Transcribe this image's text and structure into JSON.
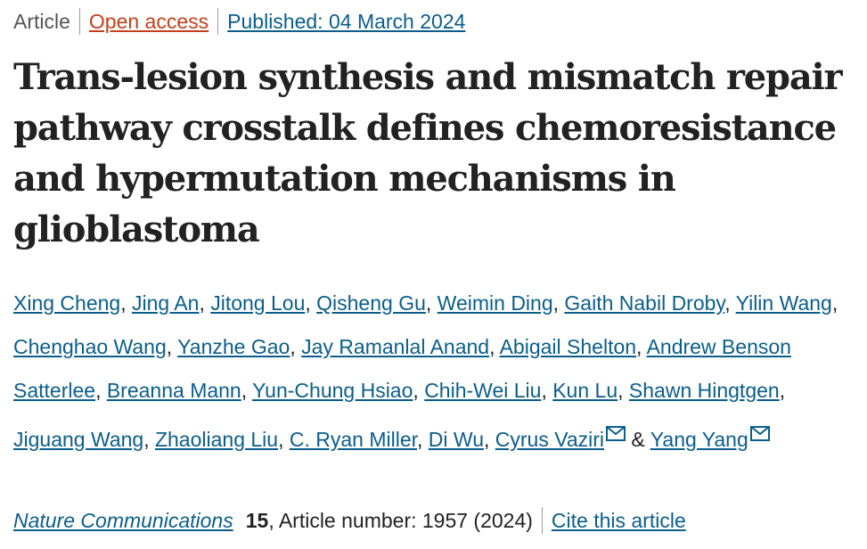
{
  "meta": {
    "article_type": "Article",
    "access": "Open access",
    "published_label": "Published: ",
    "published_date": "04 March 2024"
  },
  "title": "Trans-lesion synthesis and mismatch repair pathway crosstalk defines chemoresistance and hypermutation mechanisms in glioblastoma",
  "authors": [
    {
      "name": "Xing Cheng"
    },
    {
      "name": "Jing An"
    },
    {
      "name": "Jitong Lou"
    },
    {
      "name": "Qisheng Gu"
    },
    {
      "name": "Weimin Ding"
    },
    {
      "name": "Gaith Nabil Droby"
    },
    {
      "name": "Yilin Wang"
    },
    {
      "name": "Chenghao Wang"
    },
    {
      "name": "Yanzhe Gao"
    },
    {
      "name": "Jay Ramanlal Anand"
    },
    {
      "name": "Abigail Shelton"
    },
    {
      "name": "Andrew Benson Satterlee"
    },
    {
      "name": "Breanna Mann"
    },
    {
      "name": "Yun-Chung Hsiao"
    },
    {
      "name": "Chih-Wei Liu"
    },
    {
      "name": "Kun Lu"
    },
    {
      "name": "Shawn Hingtgen"
    },
    {
      "name": "Jiguang Wang"
    },
    {
      "name": "Zhaoliang Liu"
    },
    {
      "name": "C. Ryan Miller"
    },
    {
      "name": "Di Wu"
    },
    {
      "name": "Cyrus Vaziri"
    },
    {
      "name": "Yang Yang"
    }
  ],
  "authors_separator": ", ",
  "authors_last_joiner": " & ",
  "citation": {
    "journal": "Nature Communications",
    "volume": "15",
    "article_number": ", Article number: 1957 (2024)",
    "cite_label": "Cite this article"
  },
  "colors": {
    "link": "#0b5e8c",
    "open_access": "#c4401b",
    "text": "#222222",
    "muted": "#555555"
  },
  "icons": {
    "corresponding_author": "envelope-icon"
  }
}
